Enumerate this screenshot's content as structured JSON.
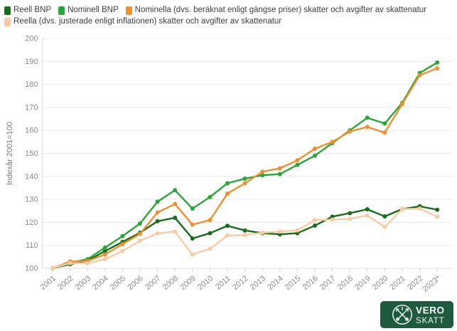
{
  "chart_data": {
    "type": "line",
    "x": [
      "2001",
      "2002",
      "2003",
      "2004",
      "2005",
      "2006",
      "2007",
      "2008",
      "2009",
      "2010",
      "2011",
      "2012",
      "2013",
      "2014",
      "2015",
      "2016",
      "2017",
      "2018",
      "2019",
      "2020",
      "2021",
      "2022",
      "2023*"
    ],
    "series": [
      {
        "name": "Reell BNP",
        "color": "#156f1a",
        "values": [
          100,
          101.8,
          103.4,
          107.5,
          111.5,
          115.5,
          120.5,
          122,
          113,
          115.3,
          118.5,
          116.5,
          115.3,
          114.8,
          115.3,
          118.6,
          122.5,
          124,
          125.7,
          122.6,
          125.8,
          127,
          125.5
        ]
      },
      {
        "name": "Nominell BNP",
        "color": "#27a737",
        "values": [
          100,
          102.5,
          104,
          109,
          114,
          119.5,
          129,
          134,
          126,
          131,
          137,
          139,
          140.5,
          141,
          145,
          149,
          154.5,
          160,
          165.5,
          163,
          172,
          185,
          189.5
        ]
      },
      {
        "name": "Nominella (dvs. beräknat enligt gängse priser) skatter och avgifter av skattenatur",
        "color": "#ef9030",
        "values": [
          100,
          103,
          103.2,
          106,
          110.5,
          115,
          124.3,
          128,
          119,
          121,
          132.5,
          137,
          142,
          143.5,
          147,
          152,
          155,
          159.5,
          161.5,
          159,
          171.5,
          184,
          187
        ]
      },
      {
        "name": "Reella (dvs. justerade enligt inflationen) skatter och avgifter av skattenatur",
        "color": "#f8cba2",
        "values": [
          100,
          102.3,
          102.2,
          104,
          107.5,
          112,
          115.2,
          116,
          106,
          108.5,
          114.3,
          114.5,
          115.5,
          116,
          116.5,
          121,
          121.2,
          121.5,
          123,
          118,
          125.8,
          126,
          122.5
        ]
      }
    ],
    "ylabel": "Indexår 2001=100",
    "ylim": [
      100,
      200
    ],
    "ytick_step": 10,
    "grid": "horizontal",
    "legend_position": "top-left"
  },
  "logo": {
    "line1": "VERO",
    "line2": "SKATT",
    "background": "#1e5b3e"
  },
  "colors": {
    "gridline": "#e9e9e9",
    "axis_line": "#dcdcdc",
    "tick_text": "#8a8a8a",
    "legend_text": "#3d3d3d"
  }
}
